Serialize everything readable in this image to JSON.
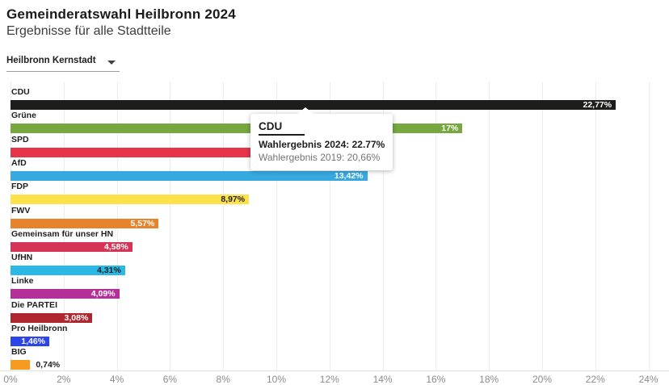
{
  "header": {
    "title": "Gemeinderatswahl Heilbronn 2024",
    "subtitle": "Ergebnisse für alle Stadtteile"
  },
  "filter": {
    "selected_district": "Heilbronn Kernstadt"
  },
  "tooltip": {
    "party": "CDU",
    "line_2024": "Wahlergebnis 2024: 22.77%",
    "line_2019": "Wahlergebnis 2019: 20,66%"
  },
  "chart_data": {
    "type": "bar",
    "orientation": "horizontal",
    "title": "Gemeinderatswahl Heilbronn 2024",
    "xlabel": "",
    "ylabel": "",
    "xlim": [
      0,
      24
    ],
    "x_ticks": [
      "0%",
      "2%",
      "4%",
      "6%",
      "8%",
      "10%",
      "12%",
      "14%",
      "16%",
      "18%",
      "20%",
      "22%",
      "24%"
    ],
    "grid": true,
    "series_name": "Wahlergebnis 2024",
    "parties": [
      {
        "name": "CDU",
        "percent": 22.77,
        "value_label": "22,77%",
        "color": "#1d1d1b",
        "value_label_color": "#ffffff",
        "value_label_position": "inside"
      },
      {
        "name": "Grüne",
        "percent": 17.0,
        "value_label": "17%",
        "color": "#76a83f",
        "value_label_color": "#ffffff",
        "value_label_position": "inside"
      },
      {
        "name": "SPD",
        "percent": 14.16,
        "value_label": "%",
        "color": "#e63449",
        "value_label_color": "#ffffff",
        "value_label_position": "inside"
      },
      {
        "name": "AfD",
        "percent": 13.42,
        "value_label": "13,42%",
        "color": "#36a9e0",
        "value_label_color": "#ffffff",
        "value_label_position": "inside"
      },
      {
        "name": "FDP",
        "percent": 8.97,
        "value_label": "8,97%",
        "color": "#fce14b",
        "value_label_color": "#1f1f1f",
        "value_label_position": "inside"
      },
      {
        "name": "FWV",
        "percent": 5.57,
        "value_label": "5,57%",
        "color": "#e7822d",
        "value_label_color": "#ffffff",
        "value_label_position": "inside"
      },
      {
        "name": "Gemeinsam für unser HN",
        "percent": 4.58,
        "value_label": "4,58%",
        "color": "#d53457",
        "value_label_color": "#ffffff",
        "value_label_position": "inside"
      },
      {
        "name": "UfHN",
        "percent": 4.31,
        "value_label": "4,31%",
        "color": "#2bb8e6",
        "value_label_color": "#1f1f1f",
        "value_label_position": "inside"
      },
      {
        "name": "Linke",
        "percent": 4.09,
        "value_label": "4,09%",
        "color": "#b42f98",
        "value_label_color": "#ffffff",
        "value_label_position": "inside"
      },
      {
        "name": "Die PARTEI",
        "percent": 3.08,
        "value_label": "3,08%",
        "color": "#b0262f",
        "value_label_color": "#ffffff",
        "value_label_position": "inside"
      },
      {
        "name": "Pro Heilbronn",
        "percent": 1.46,
        "value_label": "1,46%",
        "color": "#2b45e8",
        "value_label_color": "#ffffff",
        "value_label_position": "inside"
      },
      {
        "name": "BIG",
        "percent": 0.74,
        "value_label": "0,74%",
        "color": "#f69b20",
        "value_label_color": "#1f1f1f",
        "value_label_position": "outside"
      }
    ]
  }
}
